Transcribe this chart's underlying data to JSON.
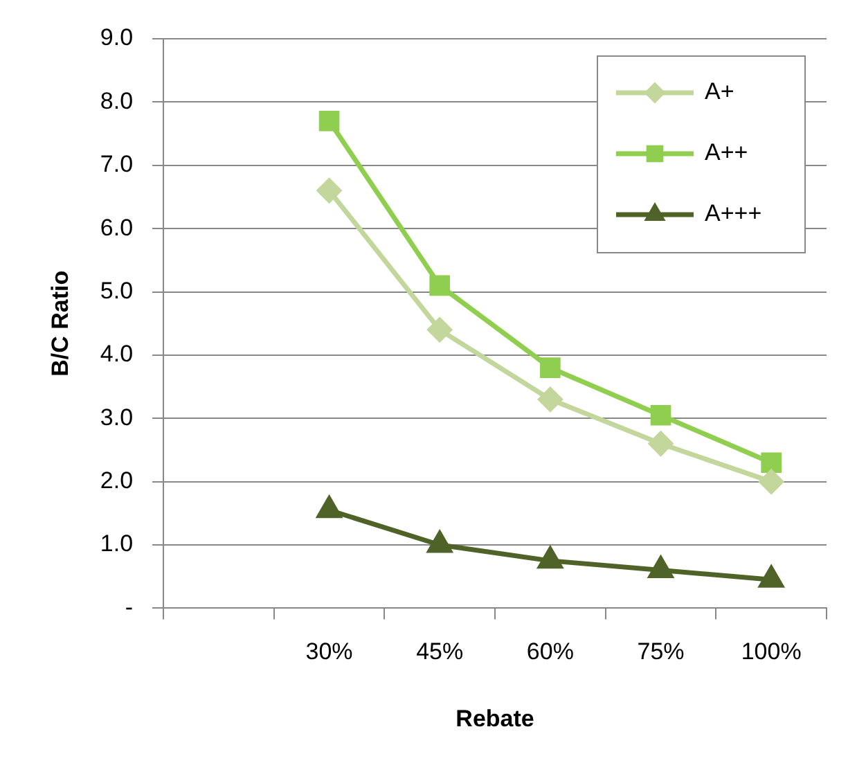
{
  "chart_data": {
    "type": "line",
    "xlabel": "Rebate",
    "ylabel": "B/C Ratio",
    "categories": [
      null,
      "30%",
      "45%",
      "60%",
      "75%",
      "100%"
    ],
    "series": [
      {
        "name": "A+",
        "color": "#c3d69b",
        "marker": "diamond",
        "values": [
          null,
          6.6,
          4.4,
          3.3,
          2.6,
          2.0
        ]
      },
      {
        "name": "A++",
        "color": "#8fce4f",
        "marker": "square",
        "values": [
          null,
          7.7,
          5.1,
          3.8,
          3.05,
          2.3
        ]
      },
      {
        "name": "A+++",
        "color": "#4f6228",
        "marker": "triangle",
        "values": [
          null,
          1.55,
          1.0,
          0.75,
          0.6,
          0.45
        ]
      }
    ],
    "ylim": [
      0,
      9
    ],
    "yticks": [
      {
        "value": 0,
        "label": "-"
      },
      {
        "value": 1,
        "label": "1.0"
      },
      {
        "value": 2,
        "label": "2.0"
      },
      {
        "value": 3,
        "label": "3.0"
      },
      {
        "value": 4,
        "label": "4.0"
      },
      {
        "value": 5,
        "label": "5.0"
      },
      {
        "value": 6,
        "label": "6.0"
      },
      {
        "value": 7,
        "label": "7.0"
      },
      {
        "value": 8,
        "label": "8.0"
      },
      {
        "value": 9,
        "label": "9.0"
      }
    ],
    "grid": "y",
    "legend": "top right"
  }
}
